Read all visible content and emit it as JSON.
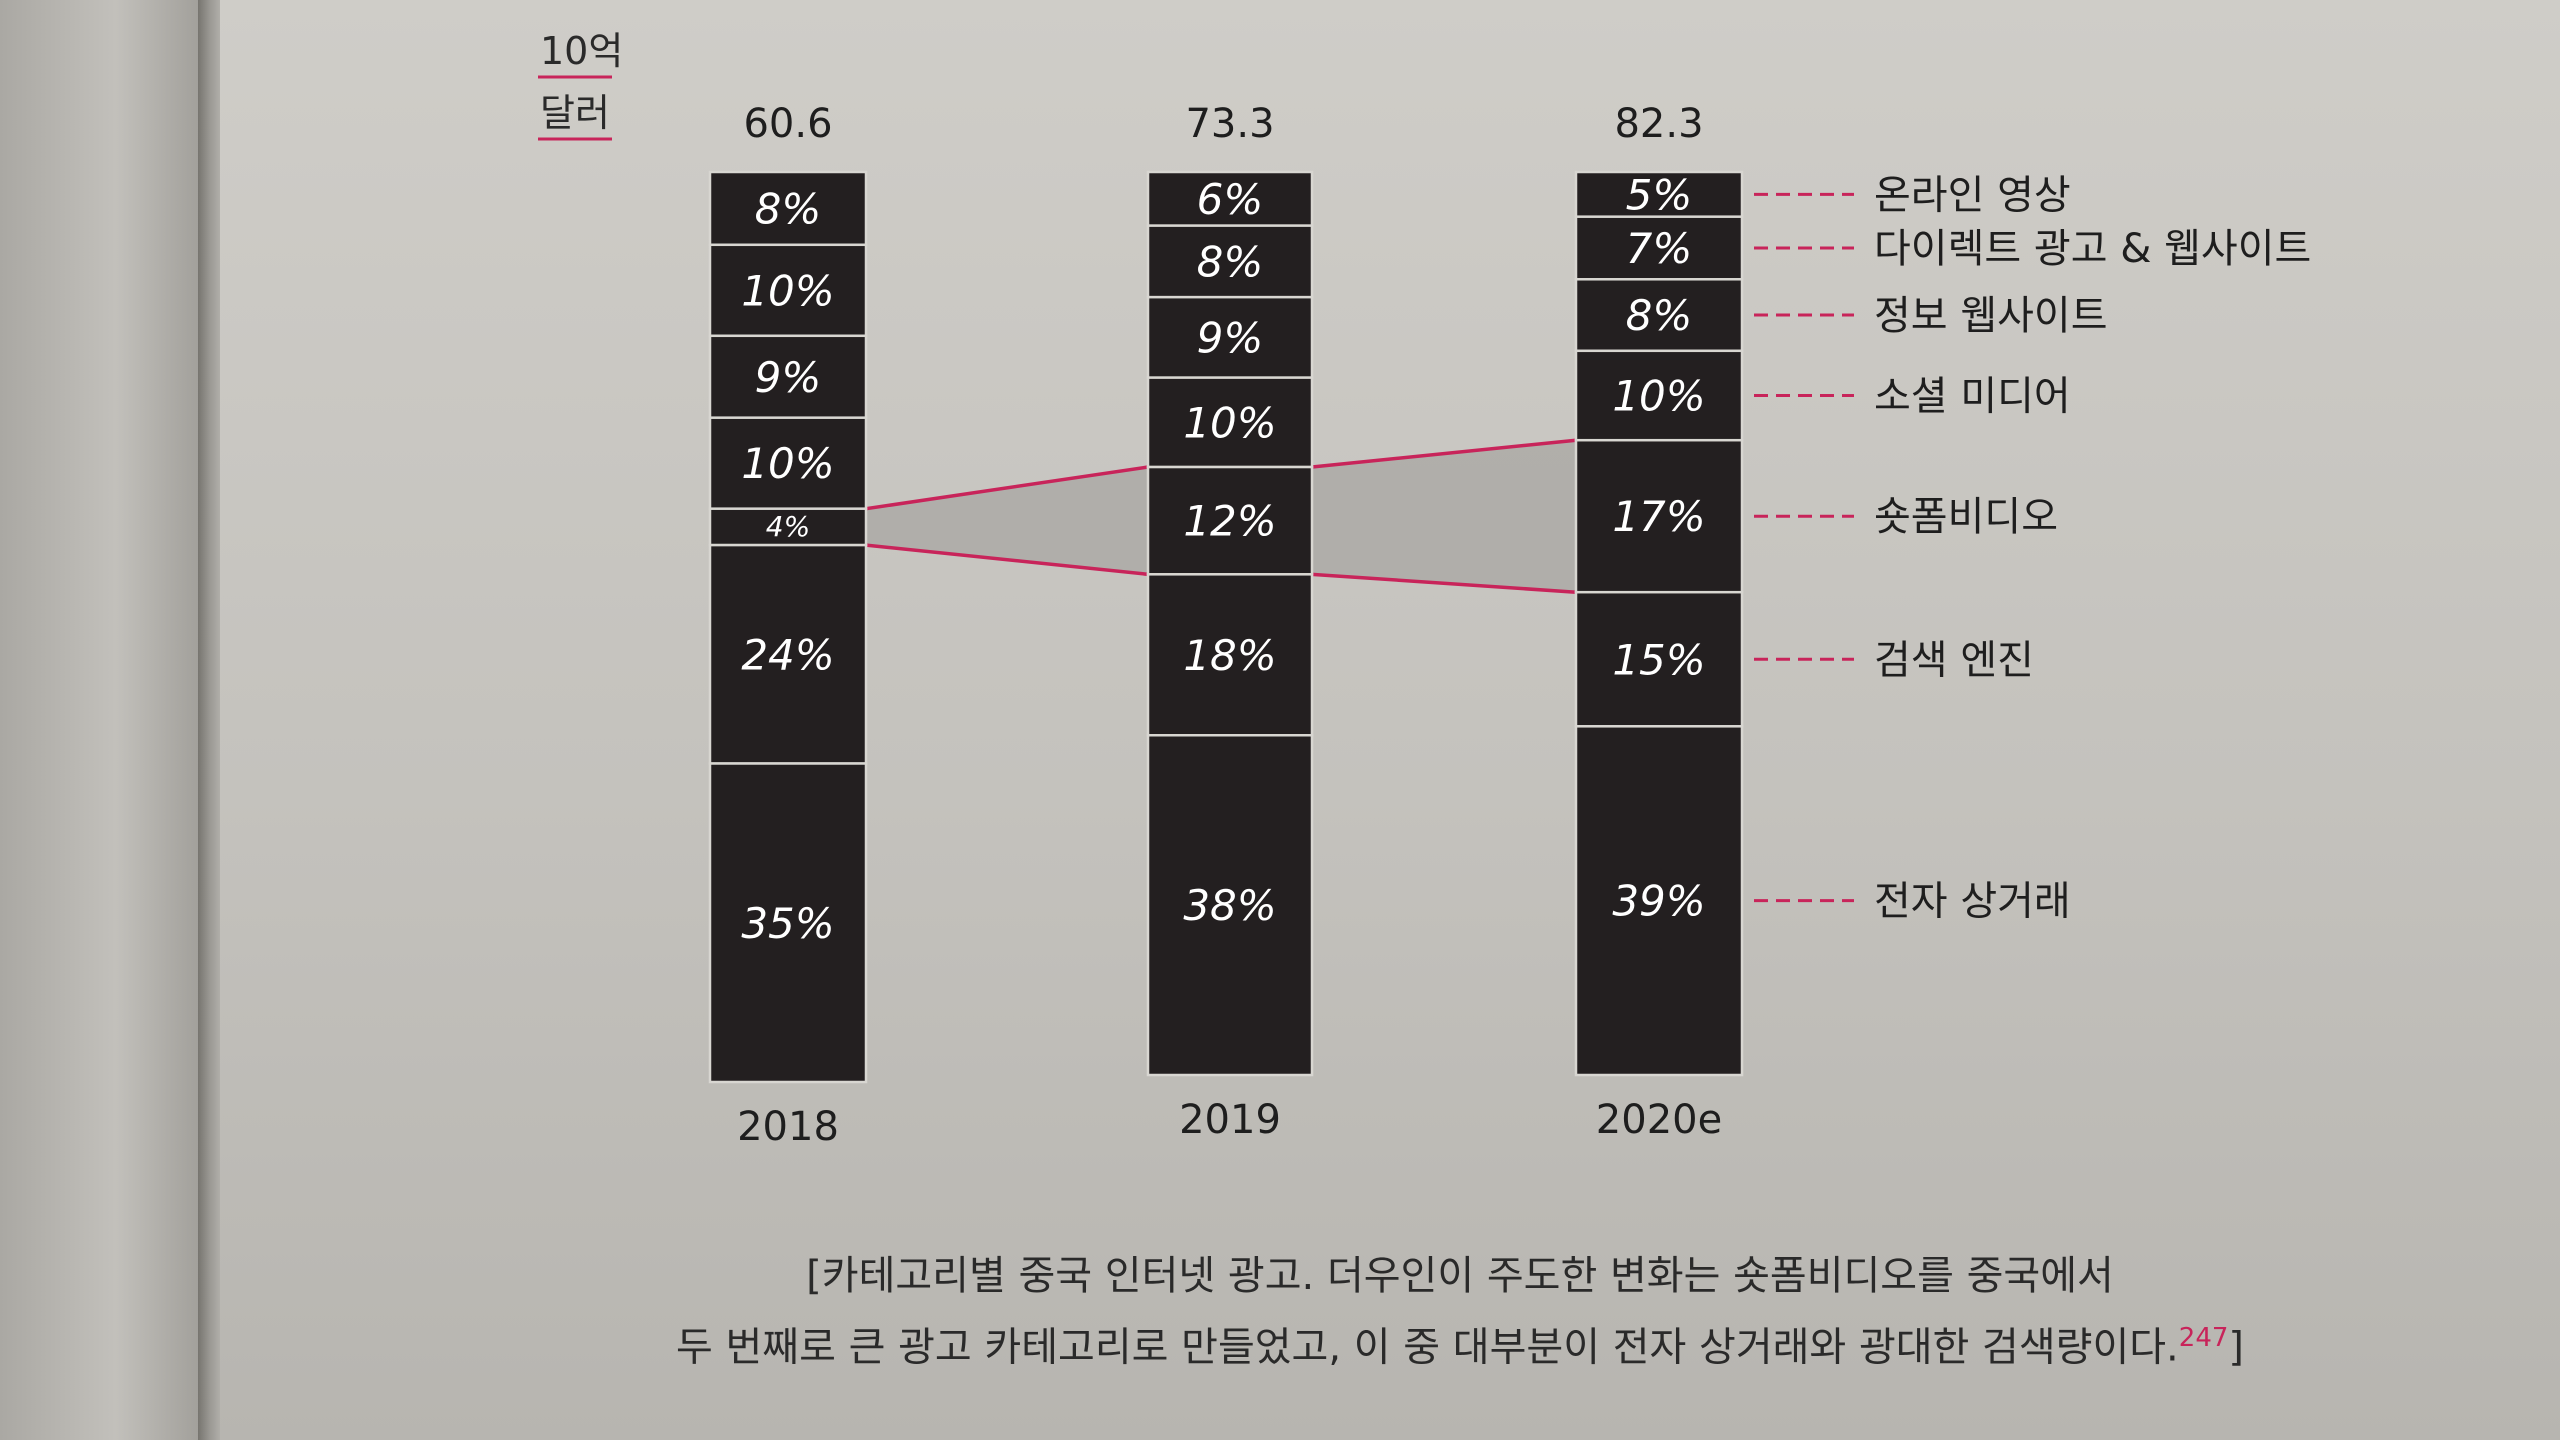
{
  "chart_data": {
    "type": "bar",
    "unit": "10억\n달러",
    "unit_line1": "10억",
    "unit_line2": "달러",
    "categories": [
      "2018",
      "2019",
      "2020e"
    ],
    "totals": [
      "60.6",
      "73.3",
      "82.3"
    ],
    "series": [
      {
        "name": "온라인 영상",
        "values": [
          8,
          6,
          5
        ]
      },
      {
        "name": "다이렉트 광고 & 웹사이트",
        "values": [
          10,
          8,
          7
        ]
      },
      {
        "name": "정보 웹사이트",
        "values": [
          9,
          9,
          8
        ]
      },
      {
        "name": "소셜 미디어",
        "values": [
          10,
          10,
          10
        ]
      },
      {
        "name": "숏폼비디오",
        "values": [
          4,
          12,
          17
        ]
      },
      {
        "name": "검색 엔진",
        "values": [
          24,
          18,
          15
        ]
      },
      {
        "name": "전자 상거래",
        "values": [
          35,
          38,
          39
        ]
      }
    ],
    "highlight_series": "숏폼비디오",
    "legend_placement": "right",
    "grid": false
  },
  "colors": {
    "bar": "#231f20",
    "accent": "#c8245a",
    "page": "#c9c7c2",
    "text": "#1e1e1e"
  },
  "caption": {
    "line1": "[카테고리별 중국 인터넷 광고. 더우인이 주도한 변화는 숏폼비디오를 중국에서",
    "line2": "두 번째로 큰 광고 카테고리로 만들었고, 이 중 대부분이 전자 상거래와 광대한 검색량이다.",
    "ref": "247",
    "close": "]"
  }
}
